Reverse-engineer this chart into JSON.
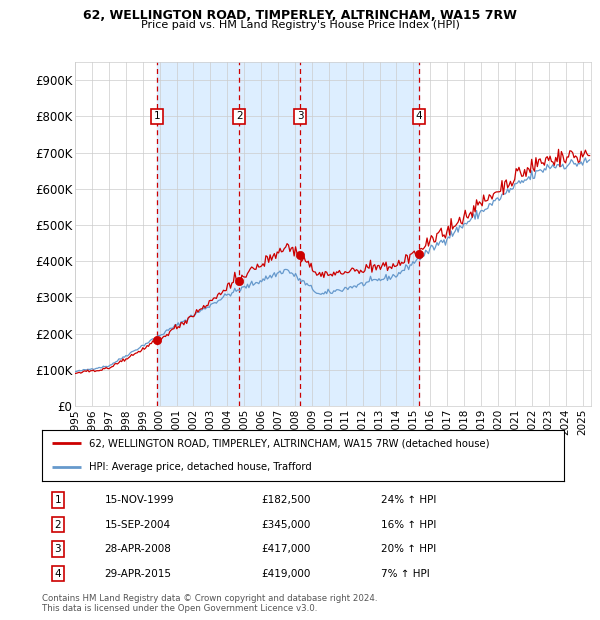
{
  "title1": "62, WELLINGTON ROAD, TIMPERLEY, ALTRINCHAM, WA15 7RW",
  "title2": "Price paid vs. HM Land Registry's House Price Index (HPI)",
  "legend_label1": "62, WELLINGTON ROAD, TIMPERLEY, ALTRINCHAM, WA15 7RW (detached house)",
  "legend_label2": "HPI: Average price, detached house, Trafford",
  "footer1": "Contains HM Land Registry data © Crown copyright and database right 2024.",
  "footer2": "This data is licensed under the Open Government Licence v3.0.",
  "sales": [
    {
      "num": 1,
      "date": "15-NOV-1999",
      "price": 182500,
      "pct": "24%",
      "dir": "↑"
    },
    {
      "num": 2,
      "date": "15-SEP-2004",
      "price": 345000,
      "pct": "16%",
      "dir": "↑"
    },
    {
      "num": 3,
      "date": "28-APR-2008",
      "price": 417000,
      "pct": "20%",
      "dir": "↑"
    },
    {
      "num": 4,
      "date": "29-APR-2015",
      "price": 419000,
      "pct": "7%",
      "dir": "↑"
    }
  ],
  "sale_dates_decimal": [
    1999.87,
    2004.71,
    2008.32,
    2015.32
  ],
  "sale_prices": [
    182500,
    345000,
    417000,
    419000
  ],
  "hpi_color": "#6699cc",
  "price_color": "#cc0000",
  "dashed_color": "#cc0000",
  "shade_color": "#ddeeff",
  "grid_color": "#cccccc",
  "background_color": "#ffffff",
  "ylim": [
    0,
    950000
  ],
  "xlim_start": 1995.0,
  "xlim_end": 2025.5,
  "yticks": [
    0,
    100000,
    200000,
    300000,
    400000,
    500000,
    600000,
    700000,
    800000,
    900000
  ],
  "ytick_labels": [
    "£0",
    "£100K",
    "£200K",
    "£300K",
    "£400K",
    "£500K",
    "£600K",
    "£700K",
    "£800K",
    "£900K"
  ],
  "xtick_years": [
    1995,
    1996,
    1997,
    1998,
    1999,
    2000,
    2001,
    2002,
    2003,
    2004,
    2005,
    2006,
    2007,
    2008,
    2009,
    2010,
    2011,
    2012,
    2013,
    2014,
    2015,
    2016,
    2017,
    2018,
    2019,
    2020,
    2021,
    2022,
    2023,
    2024,
    2025
  ]
}
